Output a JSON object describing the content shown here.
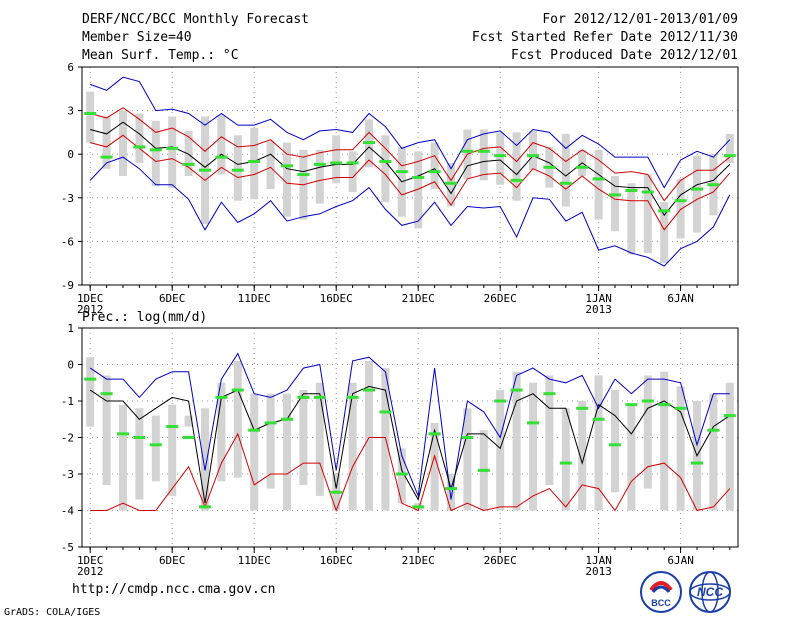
{
  "header": {
    "title": "DERF/NCC/BCC Monthly Forecast",
    "member_size": "Member Size=40",
    "variable": "Mean Surf. Temp.: °C",
    "period": "For 2012/12/01-2013/01/09",
    "started": "Fcst Started Refer Date 2012/11/30",
    "produced": "Fcst Produced Date 2012/12/01"
  },
  "footer": {
    "url": "http://cmdp.ncc.cma.gov.cn",
    "credit": "GrADS: COLA/IGES",
    "logo_bcc": "BCC",
    "logo_ncc": "NCC"
  },
  "colors": {
    "mean": "#000000",
    "spread": "#d40000",
    "envelope": "#0000c8",
    "box": "#d3d3d3",
    "obs": "#33e033",
    "grid": "#9a9a9a"
  },
  "chart_data": [
    {
      "type": "line",
      "name": "temperature",
      "title": "Mean Surf. Temp.: °C",
      "xlabel": "",
      "ylabel": "",
      "x": [
        1,
        2,
        3,
        4,
        5,
        6,
        7,
        8,
        9,
        10,
        11,
        12,
        13,
        14,
        15,
        16,
        17,
        18,
        19,
        20,
        21,
        22,
        23,
        24,
        25,
        26,
        27,
        28,
        29,
        30,
        31,
        32,
        33,
        34,
        35,
        36,
        37,
        38,
        39,
        40
      ],
      "xlim": [
        0.5,
        40.5
      ],
      "ylim": [
        -9,
        6
      ],
      "yticks": [
        6,
        3,
        0,
        -3,
        -6,
        -9
      ],
      "xticks": [
        {
          "x": 1,
          "label": "1DEC",
          "sub": "2012"
        },
        {
          "x": 6,
          "label": "6DEC",
          "sub": ""
        },
        {
          "x": 11,
          "label": "11DEC",
          "sub": ""
        },
        {
          "x": 16,
          "label": "16DEC",
          "sub": ""
        },
        {
          "x": 21,
          "label": "21DEC",
          "sub": ""
        },
        {
          "x": 26,
          "label": "26DEC",
          "sub": ""
        },
        {
          "x": 32,
          "label": "1JAN",
          "sub": "2013"
        },
        {
          "x": 37,
          "label": "6JAN",
          "sub": ""
        }
      ],
      "series": [
        {
          "name": "max",
          "values": [
            4.8,
            4.4,
            5.3,
            5.0,
            3.0,
            3.1,
            2.8,
            2.0,
            2.8,
            2.0,
            2.0,
            2.4,
            1.5,
            1.0,
            1.6,
            1.7,
            1.5,
            2.8,
            1.9,
            0.4,
            0.8,
            1.0,
            -1.0,
            1.0,
            1.4,
            1.6,
            0.6,
            1.7,
            1.5,
            0.4,
            1.3,
            0.7,
            -0.2,
            -0.2,
            -0.2,
            -2.3,
            -0.4,
            0.2,
            -0.2,
            1.0
          ]
        },
        {
          "name": "upper",
          "values": [
            2.8,
            2.5,
            3.2,
            2.4,
            1.5,
            1.8,
            1.2,
            0.2,
            1.2,
            0.5,
            0.6,
            1.0,
            0.0,
            -0.2,
            0.1,
            0.3,
            0.3,
            1.5,
            0.4,
            -0.8,
            -0.5,
            -0.1,
            -1.8,
            0.0,
            0.4,
            0.5,
            -0.5,
            0.8,
            0.4,
            -0.5,
            0.3,
            -0.4,
            -1.3,
            -1.2,
            -1.4,
            -3.2,
            -1.8,
            -1.1,
            -1.1,
            -0.2
          ]
        },
        {
          "name": "mean",
          "values": [
            1.7,
            1.4,
            2.2,
            1.4,
            0.4,
            0.5,
            0.0,
            -0.9,
            0.0,
            -0.7,
            -0.5,
            0.0,
            -1.0,
            -1.2,
            -0.9,
            -0.7,
            -0.7,
            0.5,
            -0.5,
            -1.9,
            -1.5,
            -1.0,
            -2.7,
            -0.8,
            -0.5,
            -0.4,
            -1.4,
            -0.1,
            -0.6,
            -1.5,
            -0.6,
            -1.4,
            -2.2,
            -2.3,
            -2.3,
            -4.2,
            -2.8,
            -2.1,
            -1.8,
            -0.7
          ]
        },
        {
          "name": "lower",
          "values": [
            0.8,
            0.5,
            1.3,
            0.4,
            -0.5,
            -0.3,
            -0.9,
            -1.8,
            -0.9,
            -1.6,
            -1.4,
            -0.9,
            -2.0,
            -2.1,
            -1.8,
            -1.6,
            -1.6,
            -0.4,
            -1.4,
            -2.8,
            -2.4,
            -1.9,
            -3.5,
            -1.7,
            -1.4,
            -1.3,
            -2.3,
            -1.0,
            -1.5,
            -2.4,
            -1.5,
            -2.4,
            -3.1,
            -3.2,
            -3.2,
            -5.2,
            -3.8,
            -3.1,
            -2.6,
            -1.3
          ]
        },
        {
          "name": "min",
          "values": [
            -1.8,
            -0.6,
            -0.2,
            -1.0,
            -2.1,
            -2.1,
            -3.1,
            -5.2,
            -3.3,
            -4.7,
            -4.1,
            -3.2,
            -4.6,
            -4.3,
            -4.1,
            -3.6,
            -3.2,
            -2.3,
            -3.8,
            -4.9,
            -4.6,
            -3.3,
            -4.9,
            -3.6,
            -3.7,
            -3.6,
            -5.7,
            -3.0,
            -3.1,
            -4.6,
            -4.0,
            -6.6,
            -6.3,
            -6.8,
            -7.1,
            -7.7,
            -6.5,
            -6.0,
            -5.0,
            -2.8
          ]
        }
      ],
      "boxes": [
        [
          0.8,
          4.3
        ],
        [
          -1.0,
          2.6
        ],
        [
          -1.5,
          3.0
        ],
        [
          -0.6,
          2.8
        ],
        [
          -2.2,
          2.3
        ],
        [
          -2.3,
          2.6
        ],
        [
          -1.5,
          1.6
        ],
        [
          -4.8,
          2.6
        ],
        [
          -1.4,
          2.7
        ],
        [
          -3.2,
          1.3
        ],
        [
          -3.1,
          1.8
        ],
        [
          -2.4,
          0.9
        ],
        [
          -4.3,
          0.8
        ],
        [
          -4.5,
          0.3
        ],
        [
          -3.4,
          0.3
        ],
        [
          -2.0,
          1.3
        ],
        [
          -2.6,
          0.2
        ],
        [
          -0.9,
          2.4
        ],
        [
          -3.3,
          1.3
        ],
        [
          -4.3,
          0.5
        ],
        [
          -5.1,
          0.2
        ],
        [
          -2.4,
          0.8
        ],
        [
          -3.6,
          -0.6
        ],
        [
          -1.7,
          1.7
        ],
        [
          -1.8,
          1.7
        ],
        [
          -2.1,
          1.5
        ],
        [
          -3.2,
          1.5
        ],
        [
          -1.1,
          1.6
        ],
        [
          -2.3,
          0.5
        ],
        [
          -3.6,
          1.4
        ],
        [
          -1.5,
          0.3
        ],
        [
          -4.5,
          0.3
        ],
        [
          -5.3,
          -1.5
        ],
        [
          -6.9,
          -2.0
        ],
        [
          -6.8,
          -1.4
        ],
        [
          -7.5,
          -3.3
        ],
        [
          -5.8,
          -1.7
        ],
        [
          -5.4,
          -0.1
        ],
        [
          -4.2,
          0.0
        ],
        [
          -0.6,
          1.4
        ]
      ],
      "observed": [
        2.8,
        -0.2,
        null,
        0.5,
        0.3,
        0.4,
        -0.7,
        -1.1,
        -0.2,
        -1.1,
        -0.5,
        null,
        -0.8,
        -1.4,
        -0.7,
        -0.6,
        -0.6,
        0.8,
        -0.5,
        -1.2,
        -1.6,
        -1.2,
        -2.0,
        0.2,
        0.2,
        -0.1,
        -1.8,
        -0.1,
        -0.9,
        -2.0,
        -0.9,
        -1.7,
        -2.8,
        -2.5,
        -2.6,
        -3.9,
        -3.2,
        -2.4,
        -2.1,
        -0.1
      ]
    },
    {
      "type": "line",
      "name": "precipitation",
      "title": "Prec.: log(mm/d)",
      "xlabel": "",
      "ylabel": "",
      "x": [
        1,
        2,
        3,
        4,
        5,
        6,
        7,
        8,
        9,
        10,
        11,
        12,
        13,
        14,
        15,
        16,
        17,
        18,
        19,
        20,
        21,
        22,
        23,
        24,
        25,
        26,
        27,
        28,
        29,
        30,
        31,
        32,
        33,
        34,
        35,
        36,
        37,
        38,
        39,
        40
      ],
      "xlim": [
        0.5,
        40.5
      ],
      "ylim": [
        -5,
        1
      ],
      "yticks": [
        1,
        0,
        -1,
        -2,
        -3,
        -4,
        -5
      ],
      "xticks": [
        {
          "x": 1,
          "label": "1DEC",
          "sub": "2012"
        },
        {
          "x": 6,
          "label": "6DEC",
          "sub": ""
        },
        {
          "x": 11,
          "label": "11DEC",
          "sub": ""
        },
        {
          "x": 16,
          "label": "16DEC",
          "sub": ""
        },
        {
          "x": 21,
          "label": "21DEC",
          "sub": ""
        },
        {
          "x": 26,
          "label": "26DEC",
          "sub": ""
        },
        {
          "x": 32,
          "label": "1JAN",
          "sub": "2013"
        },
        {
          "x": 37,
          "label": "6JAN",
          "sub": ""
        }
      ],
      "series": [
        {
          "name": "max",
          "values": [
            -0.1,
            -0.4,
            -0.4,
            -0.9,
            -0.4,
            -0.2,
            -0.2,
            -2.9,
            -0.4,
            0.3,
            -0.8,
            -0.9,
            -0.7,
            -0.1,
            0.0,
            -2.9,
            0.1,
            0.2,
            -0.2,
            -2.5,
            -3.6,
            -0.1,
            -3.7,
            -1.0,
            -1.3,
            -2.0,
            -0.3,
            -0.1,
            -0.4,
            -0.5,
            -0.3,
            -1.2,
            -0.4,
            -0.8,
            -0.4,
            -0.4,
            -0.5,
            -2.2,
            -0.8,
            -0.8
          ]
        },
        {
          "name": "mean",
          "values": [
            -0.7,
            -1.0,
            -1.0,
            -1.5,
            -1.2,
            -0.9,
            -1.0,
            -3.8,
            -0.9,
            -0.7,
            -1.8,
            -1.6,
            -1.5,
            -0.8,
            -0.8,
            -3.4,
            -0.8,
            -0.6,
            -0.7,
            -2.9,
            -3.7,
            -1.8,
            -3.4,
            -1.9,
            -1.9,
            -2.3,
            -1.0,
            -0.8,
            -1.2,
            -1.2,
            -2.7,
            -1.1,
            -1.4,
            -1.9,
            -1.2,
            -1.0,
            -1.3,
            -2.5,
            -1.7,
            -1.4
          ]
        },
        {
          "name": "min",
          "values": [
            -4.0,
            -4.0,
            -3.8,
            -4.0,
            -4.0,
            -3.4,
            -2.8,
            -3.9,
            -2.7,
            -1.9,
            -3.3,
            -3.0,
            -3.0,
            -2.7,
            -2.7,
            -4.0,
            -2.8,
            -2.0,
            -2.0,
            -3.8,
            -4.0,
            -2.5,
            -4.0,
            -3.8,
            -4.0,
            -3.9,
            -3.9,
            -3.6,
            -3.4,
            -3.9,
            -3.3,
            -3.4,
            -4.0,
            -3.2,
            -2.8,
            -2.7,
            -3.1,
            -4.0,
            -3.9,
            -3.4
          ]
        }
      ],
      "boxes": [
        [
          -1.7,
          0.2
        ],
        [
          -3.3,
          -0.3
        ],
        [
          -4.0,
          -1.1
        ],
        [
          -3.7,
          -1.2
        ],
        [
          -3.2,
          -1.4
        ],
        [
          -3.6,
          -1.1
        ],
        [
          -1.7,
          -1.4
        ],
        [
          -4.0,
          -1.2
        ],
        [
          -3.2,
          -0.5
        ],
        [
          -3.1,
          0.1
        ],
        [
          -4.0,
          -0.8
        ],
        [
          -3.4,
          -0.8
        ],
        [
          -4.0,
          -0.8
        ],
        [
          -3.3,
          -0.7
        ],
        [
          -3.6,
          -0.5
        ],
        [
          -4.0,
          -3.0
        ],
        [
          -4.0,
          -0.5
        ],
        [
          -4.0,
          0.1
        ],
        [
          -4.0,
          -0.1
        ],
        [
          -3.8,
          -2.3
        ],
        [
          -4.0,
          -3.8
        ],
        [
          -4.0,
          -1.6
        ],
        [
          -4.0,
          -3.0
        ],
        [
          -4.0,
          -1.2
        ],
        [
          -4.0,
          -1.8
        ],
        [
          -4.0,
          -0.7
        ],
        [
          -4.0,
          -0.2
        ],
        [
          -4.0,
          -0.5
        ],
        [
          -3.3,
          -0.3
        ],
        [
          -4.0,
          -1.2
        ],
        [
          -4.0,
          -1.0
        ],
        [
          -4.0,
          -0.3
        ],
        [
          -3.5,
          -0.7
        ],
        [
          -4.0,
          -1.1
        ],
        [
          -3.4,
          -0.3
        ],
        [
          -4.0,
          -0.2
        ],
        [
          -4.0,
          -0.6
        ],
        [
          -4.0,
          -1.0
        ],
        [
          -4.0,
          -0.8
        ],
        [
          -4.0,
          -0.5
        ]
      ],
      "observed": [
        -0.4,
        -0.8,
        -1.9,
        -2.0,
        -2.2,
        -1.7,
        -2.0,
        -3.9,
        -0.9,
        -0.7,
        -1.8,
        -1.6,
        -1.5,
        -0.9,
        -0.9,
        -3.5,
        -0.9,
        -0.7,
        -1.3,
        -3.0,
        -3.9,
        -1.9,
        -3.4,
        -2.0,
        -2.9,
        -1.0,
        -0.7,
        -1.6,
        -0.8,
        -2.7,
        -1.2,
        -1.5,
        -2.2,
        -1.1,
        -1.0,
        -1.1,
        -1.2,
        -2.7,
        -1.8,
        -1.4
      ]
    }
  ]
}
